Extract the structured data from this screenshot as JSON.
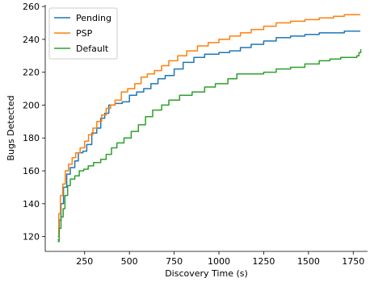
{
  "chart_data": {
    "type": "line",
    "xlabel": "Discovery Time (s)",
    "ylabel": "Bugs Detected",
    "xlim": [
      30,
      1830
    ],
    "ylim": [
      111,
      261
    ],
    "xticks": [
      250,
      500,
      750,
      1000,
      1250,
      1500,
      1750
    ],
    "yticks": [
      120,
      140,
      160,
      180,
      200,
      220,
      240,
      260
    ],
    "grid": false,
    "legend_position": "top-left",
    "series": [
      {
        "name": "Pending",
        "color": "#1f77b4",
        "points": [
          [
            100,
            118
          ],
          [
            108,
            130
          ],
          [
            118,
            140
          ],
          [
            132,
            150
          ],
          [
            150,
            158
          ],
          [
            170,
            162
          ],
          [
            195,
            166
          ],
          [
            215,
            171
          ],
          [
            240,
            172
          ],
          [
            262,
            176
          ],
          [
            290,
            183
          ],
          [
            318,
            186
          ],
          [
            340,
            192
          ],
          [
            362,
            195
          ],
          [
            385,
            200
          ],
          [
            420,
            201
          ],
          [
            460,
            202
          ],
          [
            500,
            206
          ],
          [
            540,
            208
          ],
          [
            580,
            210
          ],
          [
            620,
            213
          ],
          [
            660,
            216
          ],
          [
            700,
            218
          ],
          [
            750,
            222
          ],
          [
            800,
            226
          ],
          [
            860,
            229
          ],
          [
            920,
            231
          ],
          [
            1000,
            232
          ],
          [
            1060,
            233
          ],
          [
            1120,
            235
          ],
          [
            1180,
            237
          ],
          [
            1250,
            239
          ],
          [
            1320,
            241
          ],
          [
            1400,
            242
          ],
          [
            1480,
            243
          ],
          [
            1560,
            244
          ],
          [
            1640,
            244
          ],
          [
            1700,
            245
          ],
          [
            1790,
            245
          ]
        ]
      },
      {
        "name": "PSP",
        "color": "#ff7f0e",
        "points": [
          [
            100,
            120
          ],
          [
            106,
            134
          ],
          [
            115,
            145
          ],
          [
            128,
            152
          ],
          [
            142,
            160
          ],
          [
            160,
            164
          ],
          [
            180,
            168
          ],
          [
            200,
            171
          ],
          [
            225,
            174
          ],
          [
            250,
            178
          ],
          [
            272,
            182
          ],
          [
            296,
            186
          ],
          [
            318,
            190
          ],
          [
            345,
            194
          ],
          [
            370,
            198
          ],
          [
            395,
            200
          ],
          [
            420,
            203
          ],
          [
            455,
            208
          ],
          [
            490,
            210
          ],
          [
            530,
            213
          ],
          [
            565,
            217
          ],
          [
            600,
            219
          ],
          [
            640,
            221
          ],
          [
            680,
            224
          ],
          [
            720,
            227
          ],
          [
            770,
            230
          ],
          [
            820,
            233
          ],
          [
            880,
            236
          ],
          [
            940,
            238
          ],
          [
            1000,
            240
          ],
          [
            1060,
            242
          ],
          [
            1120,
            244
          ],
          [
            1180,
            246
          ],
          [
            1250,
            248
          ],
          [
            1320,
            250
          ],
          [
            1400,
            251
          ],
          [
            1480,
            252
          ],
          [
            1560,
            253
          ],
          [
            1640,
            254
          ],
          [
            1700,
            255
          ],
          [
            1790,
            255
          ]
        ]
      },
      {
        "name": "Default",
        "color": "#2ca02c",
        "points": [
          [
            100,
            117
          ],
          [
            108,
            125
          ],
          [
            118,
            132
          ],
          [
            130,
            137
          ],
          [
            140,
            145
          ],
          [
            155,
            151
          ],
          [
            170,
            155
          ],
          [
            195,
            157
          ],
          [
            220,
            160
          ],
          [
            245,
            161
          ],
          [
            270,
            163
          ],
          [
            300,
            165
          ],
          [
            340,
            167
          ],
          [
            370,
            170
          ],
          [
            400,
            174
          ],
          [
            430,
            177
          ],
          [
            470,
            180
          ],
          [
            510,
            184
          ],
          [
            550,
            188
          ],
          [
            590,
            193
          ],
          [
            630,
            197
          ],
          [
            680,
            200
          ],
          [
            720,
            203
          ],
          [
            780,
            206
          ],
          [
            850,
            208
          ],
          [
            920,
            211
          ],
          [
            980,
            213
          ],
          [
            1050,
            216
          ],
          [
            1100,
            219
          ],
          [
            1180,
            219
          ],
          [
            1250,
            220
          ],
          [
            1320,
            222
          ],
          [
            1400,
            223
          ],
          [
            1480,
            225
          ],
          [
            1560,
            227
          ],
          [
            1620,
            228
          ],
          [
            1680,
            229
          ],
          [
            1740,
            229
          ],
          [
            1770,
            230
          ],
          [
            1782,
            232
          ],
          [
            1792,
            234
          ]
        ]
      }
    ]
  }
}
